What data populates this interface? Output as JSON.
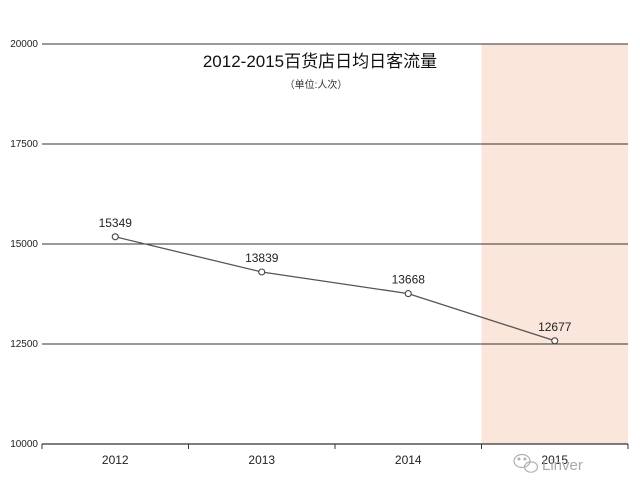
{
  "chart_data": {
    "type": "line",
    "title": "2012-2015百货店日均日客流量",
    "subtitle": "（单位:人次）",
    "categories": [
      "2012",
      "2013",
      "2014",
      "2015"
    ],
    "series": [
      {
        "values": [
          15349,
          13839,
          13668,
          12677
        ]
      }
    ],
    "plotted_values": [
      15180,
      14300,
      13760,
      12580
    ],
    "yticks": [
      10000,
      12500,
      15000,
      17500,
      20000
    ],
    "ylim": [
      10000,
      20000
    ],
    "highlight_category": "2015",
    "highlight_color": "#fbe6dc",
    "line_color": "#555555",
    "grid": true
  },
  "watermark": {
    "text": "Linver",
    "icon": "wechat-icon"
  }
}
